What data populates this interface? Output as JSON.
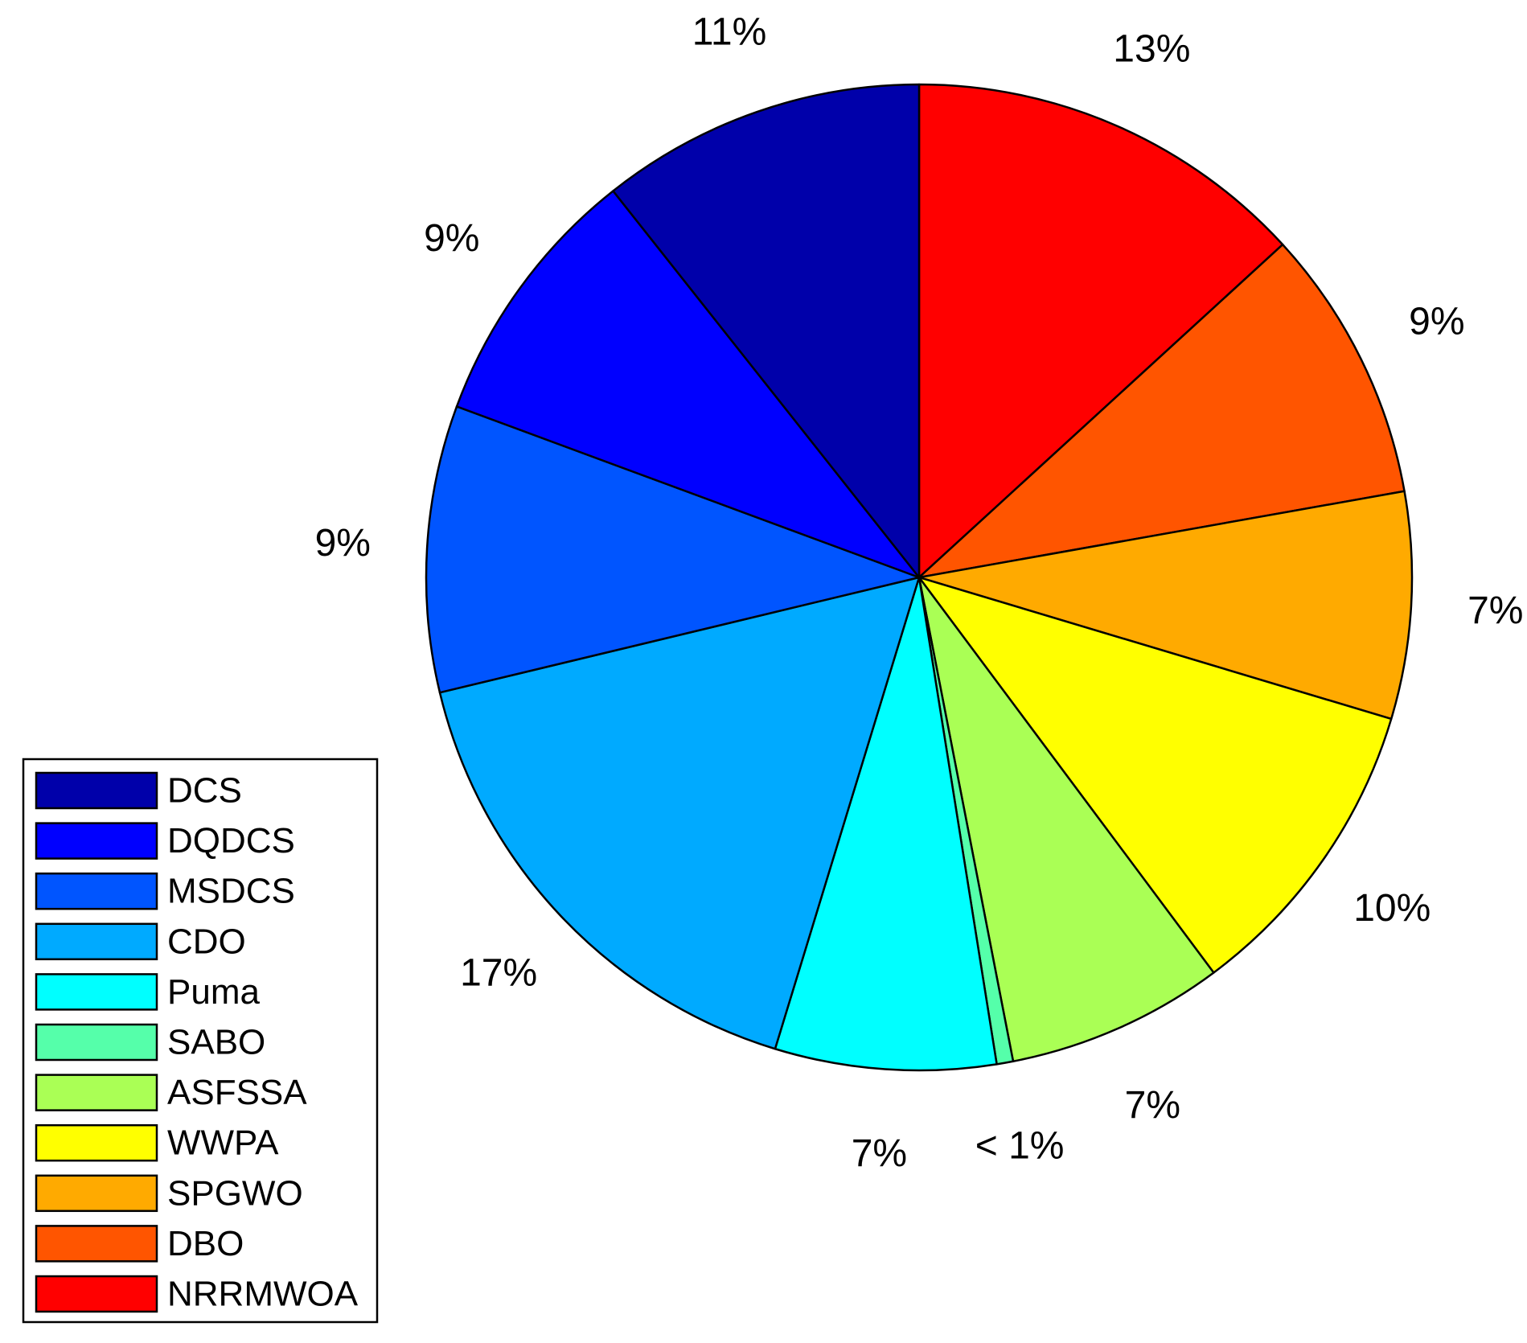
{
  "chart_data": {
    "type": "pie",
    "start": "top",
    "direction": "clockwise",
    "legend_position": "bottom-left",
    "slices": [
      {
        "name": "NRRMWOA",
        "value": 13.5,
        "label": "13%",
        "color": "#ff0000"
      },
      {
        "name": "DBO",
        "value": 9.2,
        "label": "9%",
        "color": "#ff5500"
      },
      {
        "name": "SPGWO",
        "value": 7.6,
        "label": "7%",
        "color": "#ffaa00"
      },
      {
        "name": "WWPA",
        "value": 10.4,
        "label": "10%",
        "color": "#ffff00"
      },
      {
        "name": "ASFSSA",
        "value": 7.3,
        "label": "7%",
        "color": "#aaff55"
      },
      {
        "name": "SABO",
        "value": 0.55,
        "label": "< 1%",
        "color": "#55ffaa"
      },
      {
        "name": "Puma",
        "value": 7.4,
        "label": "7%",
        "color": "#00ffff"
      },
      {
        "name": "CDO",
        "value": 16.9,
        "label": "17%",
        "color": "#00aaff"
      },
      {
        "name": "MSDCS",
        "value": 9.6,
        "label": "9%",
        "color": "#0055ff"
      },
      {
        "name": "DQDCS",
        "value": 8.9,
        "label": "9%",
        "color": "#0000ff"
      },
      {
        "name": "DCS",
        "value": 10.9,
        "label": "11%",
        "color": "#0000aa"
      }
    ],
    "legend": [
      "DCS",
      "DQDCS",
      "MSDCS",
      "CDO",
      "Puma",
      "SABO",
      "ASFSSA",
      "WWPA",
      "SPGWO",
      "DBO",
      "NRRMWOA"
    ]
  }
}
